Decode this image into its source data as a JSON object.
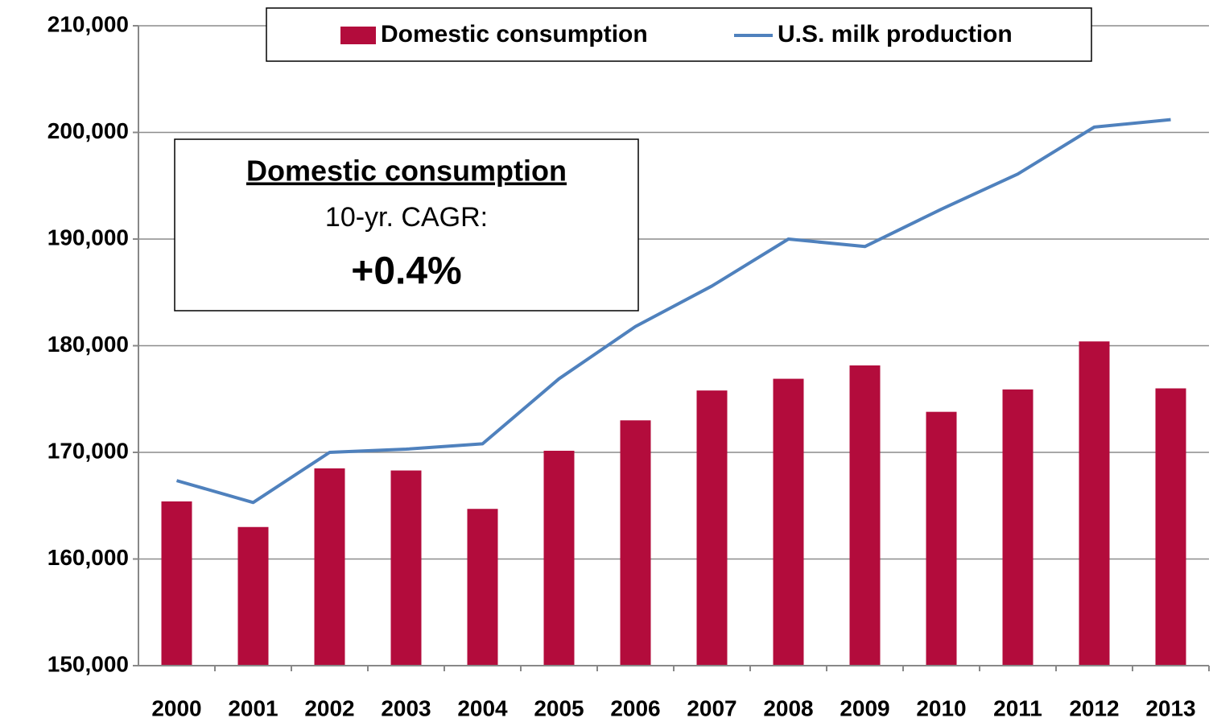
{
  "chart_data": {
    "type": "bar-line",
    "categories": [
      "2000",
      "2001",
      "2002",
      "2003",
      "2004",
      "2005",
      "2006",
      "2007",
      "2008",
      "2009",
      "2010",
      "2011",
      "2012",
      "2013"
    ],
    "series": [
      {
        "name": "Domestic consumption",
        "type": "bar",
        "color": "#b30c3c",
        "values": [
          165400,
          163000,
          168500,
          168300,
          164700,
          170150,
          173000,
          175800,
          176900,
          178150,
          173800,
          175900,
          180400,
          176000
        ]
      },
      {
        "name": "U.S. milk production",
        "type": "line",
        "color": "#4f81bd",
        "values": [
          167350,
          165300,
          170000,
          170300,
          170800,
          176900,
          181800,
          185600,
          190000,
          189300,
          192800,
          196100,
          200500,
          201200
        ]
      }
    ],
    "ylim": [
      150000,
      210000
    ],
    "yticks": [
      {
        "value": 150000,
        "label": "150,000"
      },
      {
        "value": 160000,
        "label": "160,000"
      },
      {
        "value": 170000,
        "label": "170,000"
      },
      {
        "value": 180000,
        "label": "180,000"
      },
      {
        "value": 190000,
        "label": "190,000"
      },
      {
        "value": 200000,
        "label": "200,000"
      },
      {
        "value": 210000,
        "label": "210,000"
      }
    ],
    "grid": true,
    "legend": "top",
    "annotation": {
      "title": "Domestic consumption",
      "line1": "10-yr. CAGR:",
      "line2": "+0.4%"
    }
  }
}
